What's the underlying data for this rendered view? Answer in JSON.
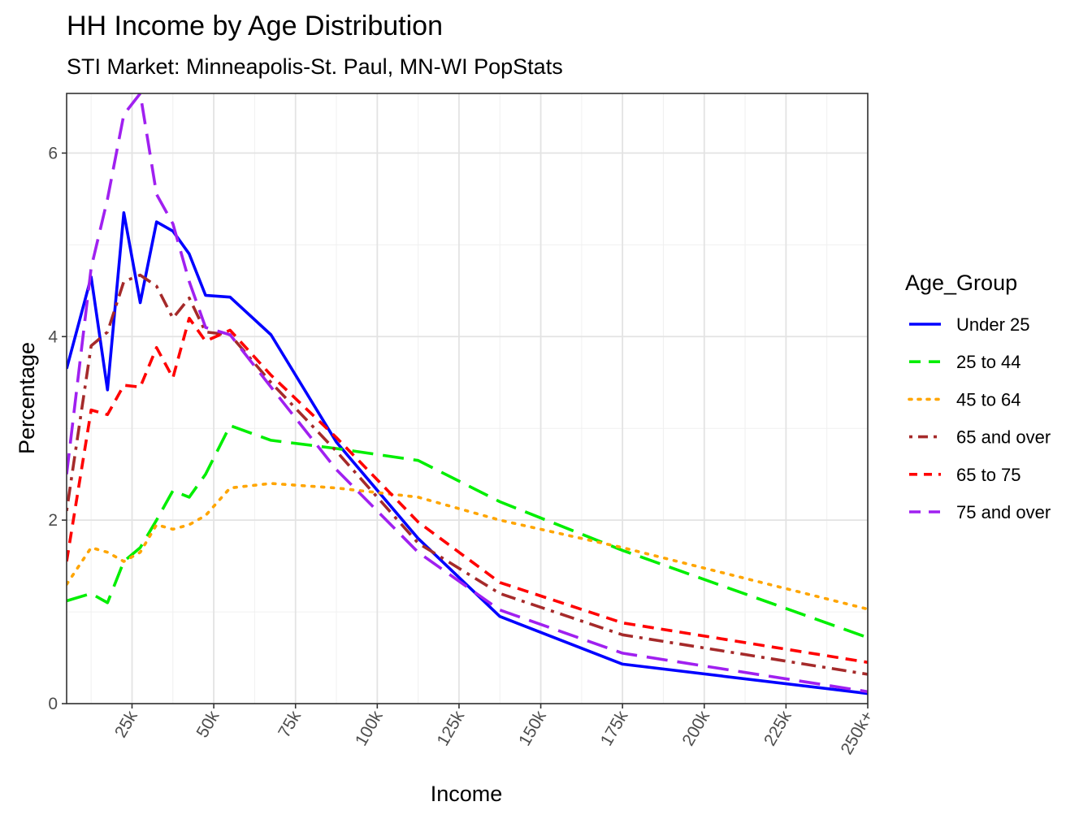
{
  "chart_data": {
    "type": "line",
    "title": "HH Income by Age Distribution",
    "subtitle": "STI Market: Minneapolis-St. Paul, MN-WI PopStats",
    "xlabel": "Income",
    "ylabel": "Percentage",
    "xlim": [
      5,
      250
    ],
    "ylim": [
      0,
      6.65
    ],
    "grid": true,
    "legend_position": "right",
    "legend_title": "Age_Group",
    "x_ticks": [
      {
        "value": 25,
        "label": "25k"
      },
      {
        "value": 50,
        "label": "50k"
      },
      {
        "value": 75,
        "label": "75k"
      },
      {
        "value": 100,
        "label": "100k"
      },
      {
        "value": 125,
        "label": "125k"
      },
      {
        "value": 150,
        "label": "150k"
      },
      {
        "value": 175,
        "label": "175k"
      },
      {
        "value": 200,
        "label": "200k"
      },
      {
        "value": 225,
        "label": "225k"
      },
      {
        "value": 250,
        "label": "250k+"
      }
    ],
    "y_ticks": [
      {
        "value": 0,
        "label": "0"
      },
      {
        "value": 2,
        "label": "2"
      },
      {
        "value": 4,
        "label": "4"
      },
      {
        "value": 6,
        "label": "6"
      }
    ],
    "x": [
      5,
      12.5,
      17.5,
      22.5,
      27.5,
      32.5,
      37.5,
      42.5,
      47.5,
      55,
      67.5,
      87.5,
      112.5,
      137.5,
      175,
      250
    ],
    "series": [
      {
        "name": "Under 25",
        "color": "#0000ff",
        "dash": "solid",
        "values": [
          3.65,
          4.65,
          3.42,
          5.35,
          4.37,
          5.25,
          5.15,
          4.9,
          4.45,
          4.43,
          4.02,
          2.85,
          1.8,
          0.95,
          0.43,
          0.11
        ]
      },
      {
        "name": "25 to 44",
        "color": "#00ee00",
        "dash": "longdash",
        "values": [
          1.12,
          1.2,
          1.1,
          1.55,
          1.7,
          2.0,
          2.32,
          2.25,
          2.5,
          3.03,
          2.87,
          2.78,
          2.65,
          2.2,
          1.67,
          0.72
        ]
      },
      {
        "name": "45 to 64",
        "color": "#ffa500",
        "dash": "dotted",
        "values": [
          1.3,
          1.7,
          1.65,
          1.55,
          1.65,
          1.95,
          1.9,
          1.95,
          2.05,
          2.35,
          2.4,
          2.35,
          2.25,
          2.0,
          1.7,
          1.03
        ]
      },
      {
        "name": "65 and over",
        "color": "#a52a2a",
        "dash": "dotdash",
        "values": [
          2.1,
          3.9,
          4.05,
          4.6,
          4.67,
          4.55,
          4.2,
          4.42,
          4.05,
          4.02,
          3.5,
          2.75,
          1.75,
          1.2,
          0.75,
          0.32
        ]
      },
      {
        "name": "65 to 75",
        "color": "#ff0000",
        "dash": "dashed",
        "values": [
          1.55,
          3.2,
          3.15,
          3.47,
          3.45,
          3.88,
          3.55,
          4.2,
          3.95,
          4.07,
          3.58,
          2.9,
          1.98,
          1.32,
          0.88,
          0.45
        ]
      },
      {
        "name": "75 and over",
        "color": "#a020f0",
        "dash": "longdash",
        "values": [
          2.5,
          4.75,
          5.5,
          6.42,
          6.65,
          5.55,
          5.23,
          4.6,
          4.1,
          4.02,
          3.45,
          2.55,
          1.65,
          1.02,
          0.55,
          0.13
        ]
      }
    ]
  }
}
